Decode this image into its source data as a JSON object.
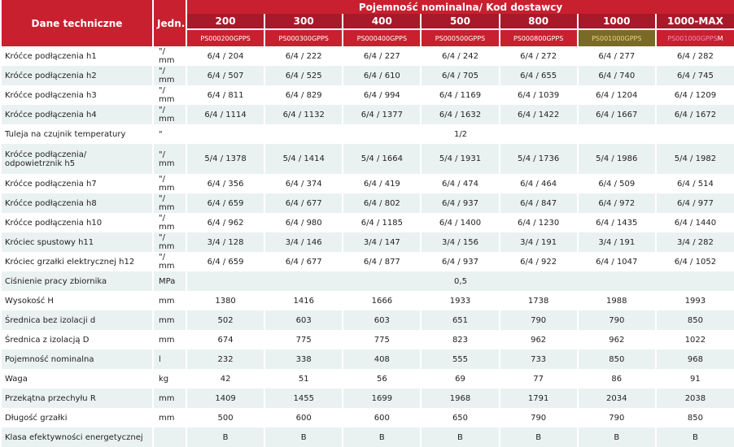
{
  "header": {
    "label": "Dane techniczne",
    "unit": "Jedn.",
    "group": "Pojemność nominalna/ Kod dostawcy",
    "capacities": [
      "200",
      "300",
      "400",
      "500",
      "800",
      "1000",
      "1000-MAX"
    ],
    "codes": [
      "PS000200GPPS",
      "PS000300GPPS",
      "PS000400GPPS",
      "PS000500GPPS",
      "PS000800GPPS",
      "PS001000GPPS",
      {
        "main": "PS001000GPPS",
        "suffix": "M"
      }
    ]
  },
  "rows": [
    {
      "label": "Króćce podłączenia h1",
      "unit": "\"/ mm",
      "values": [
        "6/4 / 204",
        "6/4 / 222",
        "6/4 / 227",
        "6/4 / 242",
        "6/4 / 272",
        "6/4 / 277",
        "6/4 / 282"
      ]
    },
    {
      "label": "Króćce podłączenia h2",
      "unit": "\"/ mm",
      "values": [
        "6/4 / 507",
        "6/4 / 525",
        "6/4 / 610",
        "6/4 / 705",
        "6/4 / 655",
        "6/4 / 740",
        "6/4 / 745"
      ]
    },
    {
      "label": "Króćce podłączenia h3",
      "unit": "\"/ mm",
      "values": [
        "6/4 / 811",
        "6/4 / 829",
        "6/4 / 994",
        "6/4 / 1169",
        "6/4 / 1039",
        "6/4 / 1204",
        "6/4 / 1209"
      ]
    },
    {
      "label": "Króćce podłączenia h4",
      "unit": "\"/ mm",
      "values": [
        "6/4 / 1114",
        "6/4 / 1132",
        "6/4 / 1377",
        "6/4 / 1632",
        "6/4 / 1422",
        "6/4 / 1667",
        "6/4 / 1672"
      ]
    },
    {
      "label": "Tuleja na czujnik temperatury",
      "unit": "\"",
      "merged": "1/2"
    },
    {
      "label": "Króćce podłączenia/ odpowietrznik h5",
      "unit": "\"/ mm",
      "values": [
        "5/4 / 1378",
        "5/4 / 1414",
        "5/4 / 1664",
        "5/4 / 1931",
        "5/4 / 1736",
        "5/4 / 1986",
        "5/4 / 1982"
      ]
    },
    {
      "label": "Króćce podłączenia h7",
      "unit": "\"/ mm",
      "values": [
        "6/4 / 356",
        "6/4 / 374",
        "6/4 / 419",
        "6/4 / 474",
        "6/4 / 464",
        "6/4 / 509",
        "6/4 / 514"
      ]
    },
    {
      "label": "Króćce podłączenia h8",
      "unit": "\"/ mm",
      "values": [
        "6/4 / 659",
        "6/4 / 677",
        "6/4 / 802",
        "6/4 / 937",
        "6/4 / 847",
        "6/4 / 972",
        "6/4 / 977"
      ]
    },
    {
      "label": "Króćce podłączenia h10",
      "unit": "\"/ mm",
      "values": [
        "6/4 / 962",
        "6/4 / 980",
        "6/4 / 1185",
        "6/4 / 1400",
        "6/4 / 1230",
        "6/4 / 1435",
        "6/4 / 1440"
      ]
    },
    {
      "label": "Króciec spustowy h11",
      "unit": "\"/ mm",
      "values": [
        "3/4 / 128",
        "3/4 / 146",
        "3/4 / 147",
        "3/4 / 156",
        "3/4 / 191",
        "3/4 / 191",
        "3/4 / 282"
      ]
    },
    {
      "label": "Króciec grzałki elektrycznej h12",
      "unit": "\"/ mm",
      "values": [
        "6/4 / 659",
        "6/4 / 677",
        "6/4 / 877",
        "6/4 / 937",
        "6/4 / 922",
        "6/4 / 1047",
        "6/4 / 1052"
      ]
    },
    {
      "label": "Ciśnienie pracy zbiornika",
      "unit": "MPa",
      "merged": "0,5"
    },
    {
      "label": "Wysokość H",
      "unit": "mm",
      "values": [
        "1380",
        "1416",
        "1666",
        "1933",
        "1738",
        "1988",
        "1993"
      ]
    },
    {
      "label": "Średnica bez izolacji d",
      "unit": "mm",
      "values": [
        "502",
        "603",
        "603",
        "651",
        "790",
        "790",
        "850"
      ]
    },
    {
      "label": "Średnica z izolacją D",
      "unit": "mm",
      "values": [
        "674",
        "775",
        "775",
        "823",
        "962",
        "962",
        "1022"
      ]
    },
    {
      "label": "Pojemność nominalna",
      "unit": "l",
      "values": [
        "232",
        "338",
        "408",
        "555",
        "733",
        "850",
        "968"
      ]
    },
    {
      "label": "Waga",
      "unit": "kg",
      "values": [
        "42",
        "51",
        "56",
        "69",
        "77",
        "86",
        "91"
      ]
    },
    {
      "label": "Przekątna przechyłu R",
      "unit": "mm",
      "values": [
        "1409",
        "1455",
        "1699",
        "1968",
        "1791",
        "2034",
        "2038"
      ]
    },
    {
      "label": "Długość grzałki",
      "unit": "mm",
      "values": [
        "500",
        "600",
        "600",
        "650",
        "790",
        "790",
        "850"
      ]
    },
    {
      "label": "Klasa efektywności energetycznej",
      "unit": null,
      "values": [
        "B",
        "B",
        "B",
        "B",
        "B",
        "B",
        "B"
      ]
    }
  ]
}
